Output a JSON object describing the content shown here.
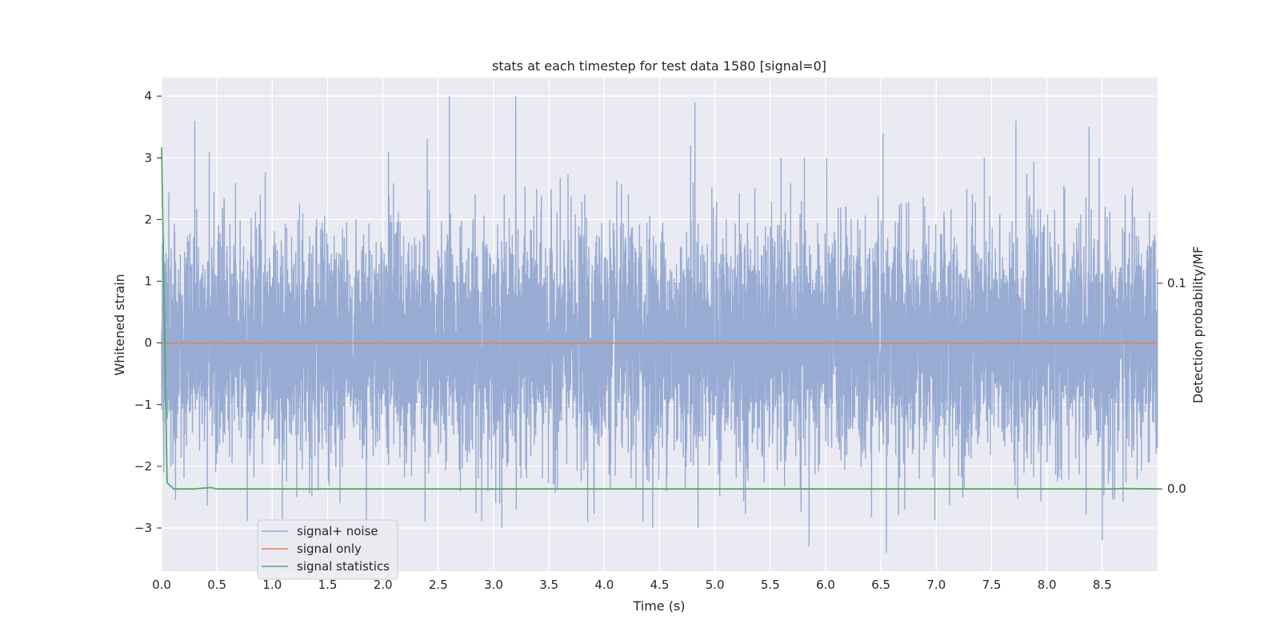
{
  "chart_data": {
    "type": "line",
    "title": "stats at each timestep for test data 1580 [signal=0]",
    "xlabel": "Time (s)",
    "ylabel": "Whitened strain",
    "y2label": "Detection probability/MF",
    "xlim": [
      0.0,
      9.0
    ],
    "ylim": [
      -3.7,
      4.3
    ],
    "y2lim": [
      -0.04,
      0.2
    ],
    "xticks": [
      "0.0",
      "0.5",
      "1.0",
      "1.5",
      "2.0",
      "2.5",
      "3.0",
      "3.5",
      "4.0",
      "4.5",
      "5.0",
      "5.5",
      "6.0",
      "6.5",
      "7.0",
      "7.5",
      "8.0",
      "8.5"
    ],
    "yticks": [
      "4",
      "3",
      "2",
      "1",
      "0",
      "−1",
      "−2",
      "−3"
    ],
    "y2ticks": [
      "0.1",
      "0.0"
    ],
    "grid": true,
    "legend_position": "lower-left",
    "series": [
      {
        "name": "signal+ noise",
        "color": "#92a8d1",
        "description": "whitened noise, roughly symmetric about 0 with extremes near ±3 to ±4",
        "sample_rate": 820,
        "notable_peaks": [
          {
            "x": 0.3,
            "y": 3.6
          },
          {
            "x": 0.43,
            "y": 3.1
          },
          {
            "x": 2.05,
            "y": 3.1
          },
          {
            "x": 2.4,
            "y": 3.3
          },
          {
            "x": 2.6,
            "y": 4.0
          },
          {
            "x": 3.2,
            "y": 4.0
          },
          {
            "x": 4.82,
            "y": 3.9
          },
          {
            "x": 4.78,
            "y": 3.2
          },
          {
            "x": 6.52,
            "y": 3.4
          },
          {
            "x": 7.72,
            "y": 3.6
          },
          {
            "x": 8.38,
            "y": 3.5
          }
        ],
        "notable_troughs": [
          {
            "x": 0.02,
            "y": -2.1
          },
          {
            "x": 1.85,
            "y": -3.2
          },
          {
            "x": 2.38,
            "y": -2.9
          },
          {
            "x": 3.85,
            "y": -2.9
          },
          {
            "x": 4.35,
            "y": -2.9
          },
          {
            "x": 5.85,
            "y": -3.3
          },
          {
            "x": 6.55,
            "y": -3.4
          },
          {
            "x": 8.5,
            "y": -3.2
          }
        ]
      },
      {
        "name": "signal only",
        "color": "#dd8452",
        "x": [
          0.0,
          9.0
        ],
        "y": [
          0.0,
          0.0
        ]
      },
      {
        "name": "signal statistics",
        "color": "#55a868",
        "axis": "right",
        "x": [
          0.0,
          0.05,
          0.11,
          0.3,
          0.44,
          0.5,
          8.6,
          8.67,
          9.0
        ],
        "y": [
          0.166,
          0.003,
          0.0,
          0.0,
          0.0007,
          0.0,
          0.0,
          0.0002,
          0.0
        ]
      }
    ]
  }
}
